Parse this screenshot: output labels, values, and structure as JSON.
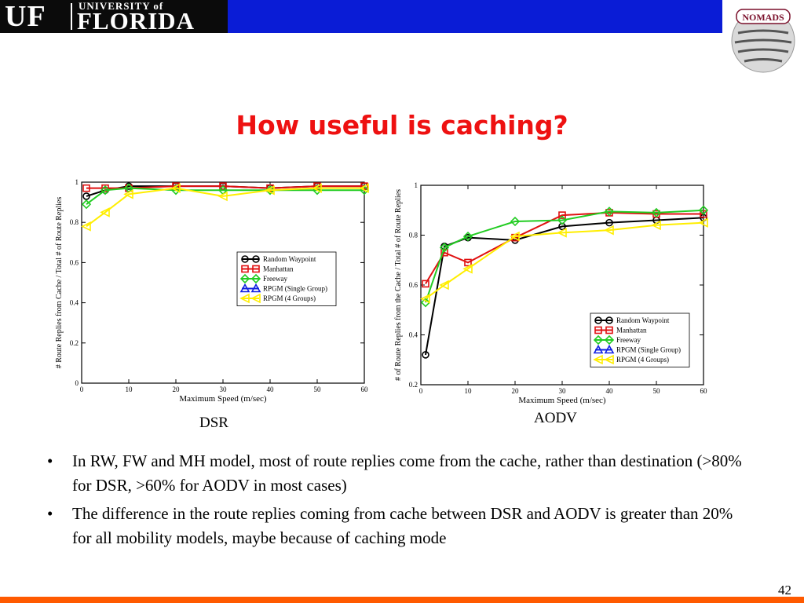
{
  "header": {
    "logo_university": "UNIVERSITY of",
    "logo_mark": "UF",
    "logo_florida": "FLORIDA",
    "nomads_logo_text": "NOMADS",
    "bar_color": "#0a1cd6",
    "footer_bar_color": "#ff5a00"
  },
  "slide": {
    "title": "How useful is caching?",
    "title_color": "#ee1111",
    "page_number": "42"
  },
  "bullets": [
    "In RW, FW and MH model, most of route replies come from the cache, rather than destination (>80% for DSR, >60% for AODV in most cases)",
    "The difference in the route replies coming from cache between DSR and AODV is greater than 20% for all mobility models, maybe because of caching mode"
  ],
  "bullet_symbol": "•",
  "chart_data": [
    {
      "type": "line",
      "caption": "DSR",
      "xlabel": "Maximum Speed (m/sec)",
      "ylabel": "# Route Replies from Cache / Total # of Route Replies",
      "xlim": [
        0,
        60
      ],
      "ylim": [
        0,
        1
      ],
      "xticks": [
        "0",
        "10",
        "20",
        "30",
        "40",
        "50",
        "60"
      ],
      "yticks": [
        "0",
        "0.2",
        "0.4",
        "0.6",
        "0.8",
        "1"
      ],
      "grid": false,
      "legend_position": "center-right",
      "series": [
        {
          "name": "Random Waypoint",
          "color": "#000000",
          "marker": "circle",
          "x": [
            1,
            5,
            10,
            20,
            30,
            40,
            50,
            60
          ],
          "y": [
            0.93,
            0.96,
            0.98,
            0.98,
            0.98,
            0.97,
            0.98,
            0.98
          ]
        },
        {
          "name": "Manhattan",
          "color": "#e01010",
          "marker": "square",
          "x": [
            1,
            5,
            10,
            20,
            30,
            40,
            50,
            60
          ],
          "y": [
            0.97,
            0.97,
            0.97,
            0.98,
            0.98,
            0.97,
            0.98,
            0.98
          ]
        },
        {
          "name": "Freeway",
          "color": "#22cc22",
          "marker": "diamond",
          "x": [
            1,
            5,
            10,
            20,
            30,
            40,
            50,
            60
          ],
          "y": [
            0.89,
            0.96,
            0.97,
            0.96,
            0.96,
            0.96,
            0.96,
            0.96
          ]
        },
        {
          "name": "RPGM (Single Group)",
          "color": "#1020e0",
          "marker": "triangle",
          "x": [],
          "y": []
        },
        {
          "name": "RPGM (4 Groups)",
          "color": "#ffee00",
          "marker": "left-triangle",
          "x": [
            1,
            5,
            10,
            20,
            30,
            40,
            50,
            60
          ],
          "y": [
            0.78,
            0.85,
            0.94,
            0.97,
            0.93,
            0.96,
            0.97,
            0.97
          ]
        }
      ]
    },
    {
      "type": "line",
      "caption": "AODV",
      "xlabel": "Maximum Speed (m/sec)",
      "ylabel": "# of Route Replies from the Cache / Total # of Route Replies",
      "xlim": [
        0,
        60
      ],
      "ylim": [
        0.2,
        1
      ],
      "xticks": [
        "0",
        "10",
        "20",
        "30",
        "40",
        "50",
        "60"
      ],
      "yticks": [
        "0.2",
        "0.4",
        "0.6",
        "0.8",
        "1"
      ],
      "grid": false,
      "legend_position": "lower-right",
      "series": [
        {
          "name": "Random Waypoint",
          "color": "#000000",
          "marker": "circle",
          "x": [
            1,
            5,
            10,
            20,
            30,
            40,
            50,
            60
          ],
          "y": [
            0.32,
            0.755,
            0.79,
            0.78,
            0.835,
            0.85,
            0.86,
            0.87
          ]
        },
        {
          "name": "Manhattan",
          "color": "#e01010",
          "marker": "square",
          "x": [
            1,
            5,
            10,
            20,
            30,
            40,
            50,
            60
          ],
          "y": [
            0.605,
            0.73,
            0.69,
            0.79,
            0.88,
            0.89,
            0.885,
            0.885
          ]
        },
        {
          "name": "Freeway",
          "color": "#22cc22",
          "marker": "diamond",
          "x": [
            1,
            5,
            10,
            20,
            30,
            40,
            50,
            60
          ],
          "y": [
            0.53,
            0.75,
            0.795,
            0.855,
            0.86,
            0.895,
            0.89,
            0.9
          ]
        },
        {
          "name": "RPGM (Single Group)",
          "color": "#1020e0",
          "marker": "triangle",
          "x": [],
          "y": []
        },
        {
          "name": "RPGM (4 Groups)",
          "color": "#ffee00",
          "marker": "left-triangle",
          "x": [
            1,
            5,
            10,
            20,
            30,
            40,
            50,
            60
          ],
          "y": [
            0.545,
            0.6,
            0.665,
            0.795,
            0.81,
            0.82,
            0.84,
            0.85
          ]
        }
      ]
    }
  ]
}
